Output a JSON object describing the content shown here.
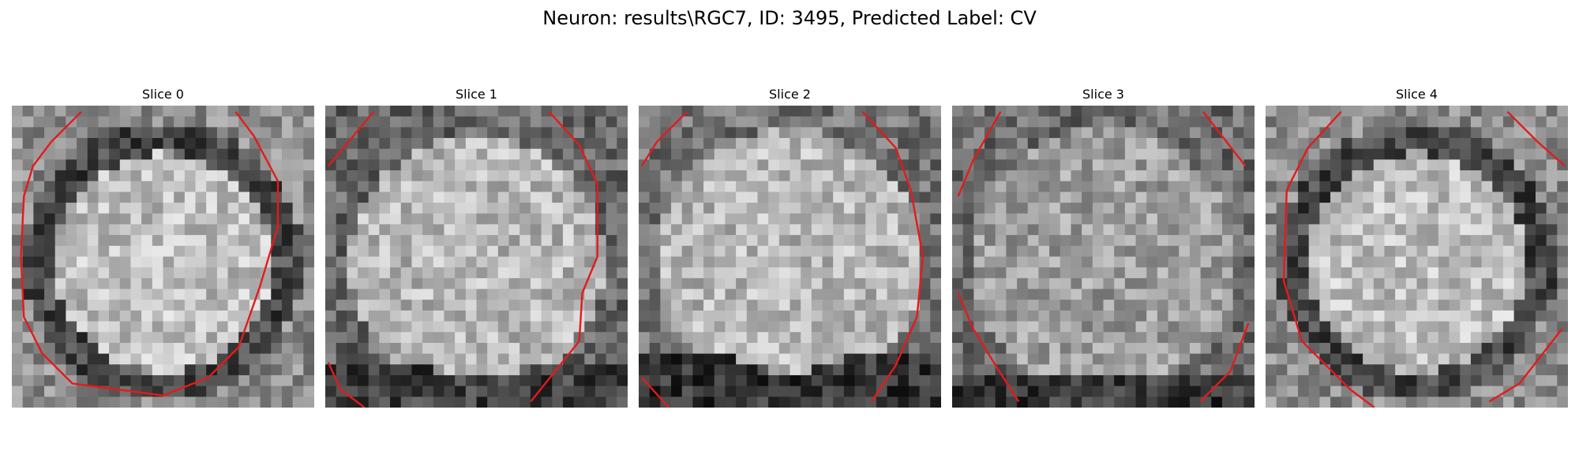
{
  "figure": {
    "title": "Neuron: results\\RGC7, ID: 3495, Predicted Label: CV",
    "overlay_color": "#e41a1c"
  },
  "panels": [
    {
      "title": "Slice 0",
      "pattern": "ring-dark-outer-light-inner"
    },
    {
      "title": "Slice 1",
      "pattern": "speckled-bright-center-dark-bottom-rim"
    },
    {
      "title": "Slice 2",
      "pattern": "uniform-light-with-dark-lower-rim"
    },
    {
      "title": "Slice 3",
      "pattern": "mottled-gray-dark-bottom"
    },
    {
      "title": "Slice 4",
      "pattern": "ring-dark-rim-light-center"
    }
  ]
}
